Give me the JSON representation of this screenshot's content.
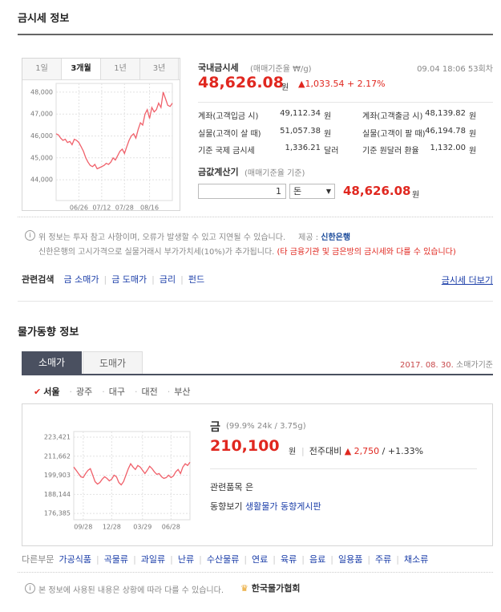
{
  "gold": {
    "title": "금시세 정보",
    "tabs": [
      "1일",
      "3개월",
      "1년",
      "3년"
    ],
    "active_tab": 1,
    "chart": {
      "type": "line",
      "color": "#f0606a",
      "values": [
        46100,
        46050,
        45900,
        45800,
        45850,
        45700,
        45750,
        45600,
        45850,
        45800,
        45700,
        45500,
        45300,
        45000,
        44800,
        44650,
        44600,
        44700,
        44500,
        44550,
        44600,
        44650,
        44750,
        44700,
        44800,
        45000,
        44900,
        45100,
        45300,
        45400,
        45200,
        45500,
        45800,
        46000,
        46100,
        45900,
        46300,
        46600,
        46500,
        47000,
        47200,
        46800,
        47300,
        47100,
        47200,
        47500,
        47300,
        48000,
        47700,
        47400,
        47350,
        47500
      ],
      "ylim": [
        43050,
        48400
      ],
      "yticks": [
        {
          "value": 44000,
          "label": "44,000"
        },
        {
          "value": 45000,
          "label": "45,000"
        },
        {
          "value": 46000,
          "label": "46,000"
        },
        {
          "value": 47000,
          "label": "47,000"
        },
        {
          "value": 48000,
          "label": "48,000"
        }
      ],
      "xticks": [
        {
          "value": 10,
          "label": "06/26"
        },
        {
          "value": 20,
          "label": "07/12"
        },
        {
          "value": 30,
          "label": "07/28"
        },
        {
          "value": 41,
          "label": "08/16"
        }
      ],
      "grid": true
    },
    "label": "국내금시세",
    "basis": "(매매기준율 ₩/g)",
    "timestamp": "09.04 18:06 53회차",
    "price": "48,626.08",
    "unit": "원",
    "change": "▲1,033.54 + 2.17%",
    "rows": [
      [
        [
          "계좌(고객입금 시)",
          "49,112.34",
          "원"
        ],
        [
          "계좌(고객출금 시)",
          "48,139.82",
          "원"
        ]
      ],
      [
        [
          "실물(고객이 살 때)",
          "51,057.38",
          "원"
        ],
        [
          "실물(고객이 팔 때)",
          "46,194.78",
          "원"
        ]
      ],
      [
        [
          "기준 국제 금시세",
          "1,336.21",
          "달러"
        ],
        [
          "기준 원달러 환율",
          "1,132.00",
          "원"
        ]
      ]
    ],
    "calculator": {
      "label": "금값계산기",
      "basis": "(매매기준율 기준)",
      "input": "1",
      "unit_select": "돈",
      "result": "48,626.08",
      "result_unit": "원"
    },
    "notice": {
      "line1": "위 정보는 투자 참고 사항이며, 오류가 발생할 수 있고 지연될 수 있습니다.",
      "provider_label": "제공 :",
      "provider": "신한은행",
      "line2": "신한은행의 고시가격으로 실물거래시 부가가치세(10%)가 추가됩니다.",
      "line2_warning": "(타 금융기관 및 금은방의 금시세와 다를 수 있습니다)"
    },
    "related": {
      "label": "관련검색",
      "links": [
        "금 소매가",
        "금 도매가",
        "금리",
        "펀드"
      ],
      "more": "금시세 더보기"
    }
  },
  "prices": {
    "title": "물가동향 정보",
    "tabs": [
      "소매가",
      "도매가"
    ],
    "active_tab": 0,
    "date": "2017. 08. 30.",
    "date_basis": "소매가기준",
    "cities": [
      "서울",
      "광주",
      "대구",
      "대전",
      "부산"
    ],
    "active_city": 0,
    "chart": {
      "type": "line",
      "color": "#f0606a",
      "values": [
        205000,
        203000,
        201000,
        199000,
        198500,
        201000,
        203000,
        204000,
        200000,
        196000,
        194500,
        195500,
        197500,
        199000,
        198000,
        196500,
        197500,
        200000,
        199000,
        195500,
        194000,
        196000,
        200000,
        204000,
        207000,
        205000,
        203500,
        206000,
        205000,
        203000,
        201000,
        203000,
        205500,
        204000,
        202000,
        200500,
        201000,
        199000,
        198000,
        198500,
        200000,
        198500,
        199500,
        202000,
        203500,
        201000,
        205000,
        207000,
        206000,
        208000
      ],
      "ylim": [
        172500,
        226900
      ],
      "yticks": [
        {
          "value": 176385,
          "label": "176,385"
        },
        {
          "value": 188144,
          "label": "188,144"
        },
        {
          "value": 199903,
          "label": "199,903"
        },
        {
          "value": 211662,
          "label": "211,662"
        },
        {
          "value": 223421,
          "label": "223,421"
        }
      ],
      "xticks": [
        {
          "value": 4,
          "label": "09/28"
        },
        {
          "value": 16,
          "label": "12/28"
        },
        {
          "value": 29,
          "label": "03/29"
        },
        {
          "value": 41,
          "label": "06/28"
        }
      ],
      "grid": true
    },
    "item": "금",
    "spec": "(99.9% 24k / 3.75g)",
    "price": "210,100",
    "unit": "원",
    "compare_label": "전주대비",
    "change": "▲ 2,750",
    "change_pct": "/ +1.33%",
    "related_label": "관련품목",
    "related_item": "은",
    "trend_label": "동향보기",
    "trend_link": "생활물가 동향게시판",
    "other_label": "다른부문",
    "other": [
      "가공식품",
      "곡물류",
      "과일류",
      "난류",
      "수산물류",
      "연료",
      "육류",
      "음료",
      "일용품",
      "주류",
      "채소류"
    ],
    "footer": "본 정보에 사용된 내용은 상황에 따라 다를 수 있습니다.",
    "footer_logo": "한국물가협회"
  }
}
